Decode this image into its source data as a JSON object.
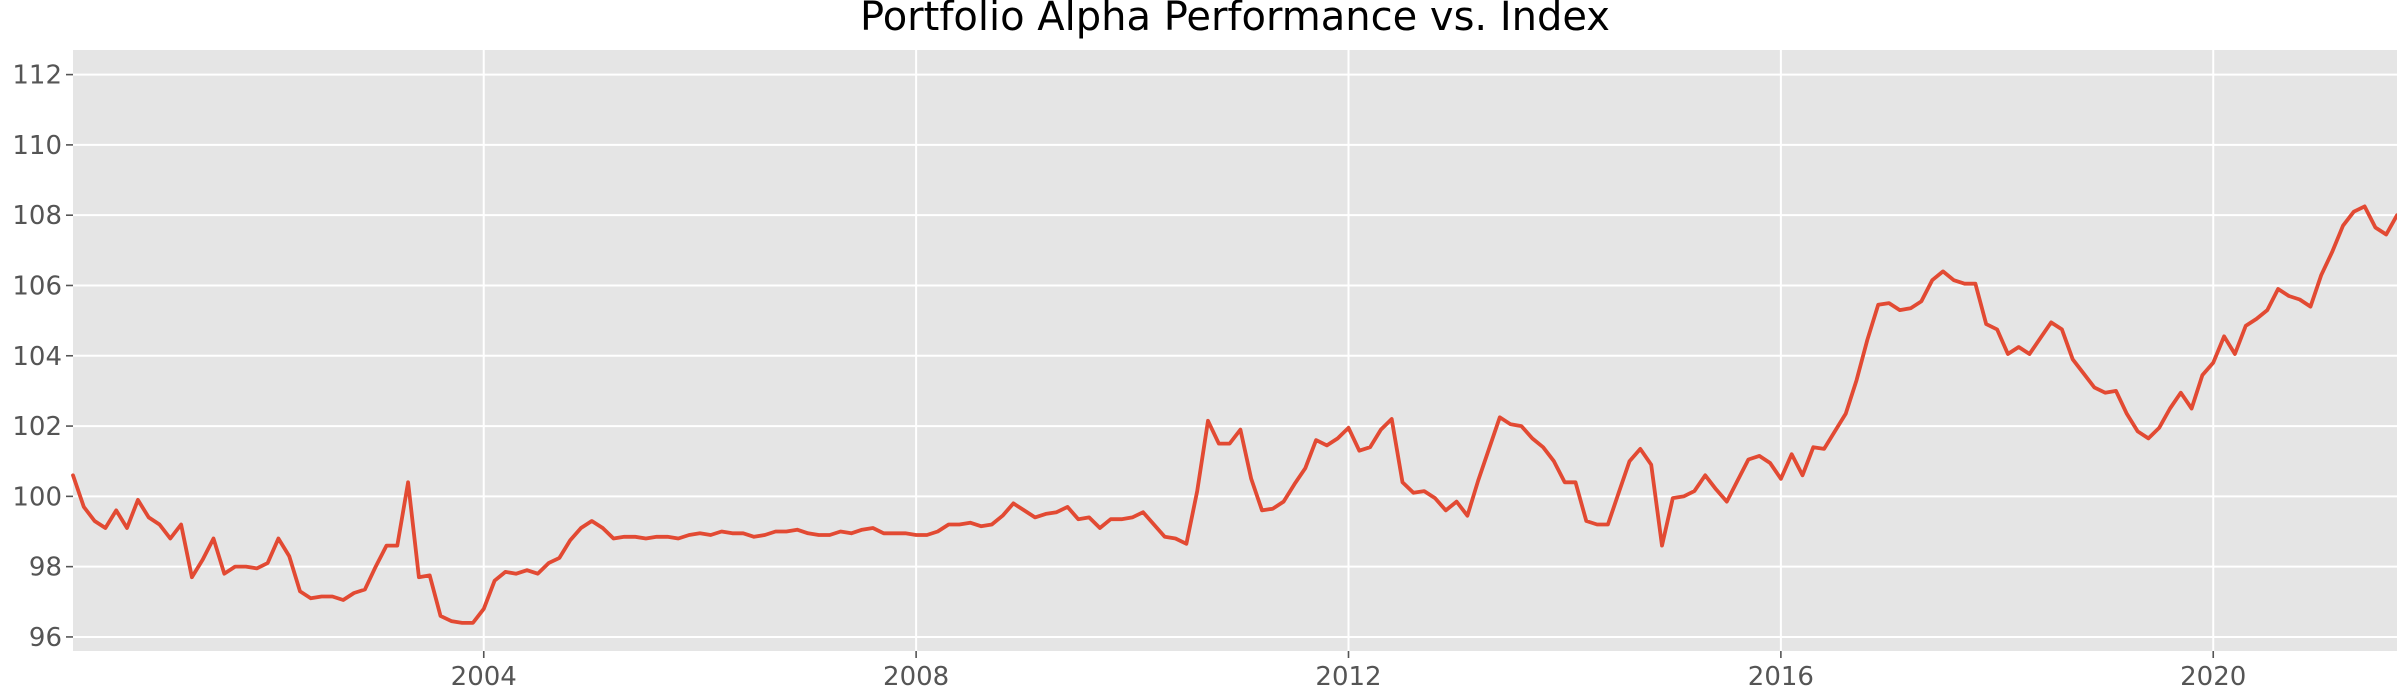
{
  "chart_data": {
    "type": "line",
    "title": "Portfolio Alpha Performance vs. Index",
    "xlabel": "",
    "ylabel": "",
    "xlim": [
      2000.2,
      2021.7
    ],
    "ylim": [
      95.6,
      112.7
    ],
    "xticks": [
      2004,
      2008,
      2012,
      2016,
      2020
    ],
    "yticks": [
      96,
      98,
      100,
      102,
      104,
      106,
      108,
      110,
      112
    ],
    "grid": true,
    "legend": "none",
    "colors": {
      "plot_background": "#e5e5e5",
      "grid": "#ffffff",
      "line": "#e24a33",
      "tick_label": "#555555"
    },
    "series": [
      {
        "color": "#e24a33",
        "points": [
          [
            2000.2,
            100.6
          ],
          [
            2000.3,
            99.7
          ],
          [
            2000.4,
            99.3
          ],
          [
            2000.5,
            99.1
          ],
          [
            2000.6,
            99.6
          ],
          [
            2000.7,
            99.1
          ],
          [
            2000.8,
            99.9
          ],
          [
            2000.9,
            99.4
          ],
          [
            2001.0,
            99.2
          ],
          [
            2001.1,
            98.8
          ],
          [
            2001.2,
            99.2
          ],
          [
            2001.3,
            97.7
          ],
          [
            2001.4,
            98.2
          ],
          [
            2001.5,
            98.8
          ],
          [
            2001.6,
            97.8
          ],
          [
            2001.7,
            98.0
          ],
          [
            2001.8,
            98.0
          ],
          [
            2001.9,
            97.95
          ],
          [
            2002.0,
            98.1
          ],
          [
            2002.1,
            98.8
          ],
          [
            2002.2,
            98.3
          ],
          [
            2002.3,
            97.3
          ],
          [
            2002.4,
            97.1
          ],
          [
            2002.5,
            97.15
          ],
          [
            2002.6,
            97.15
          ],
          [
            2002.7,
            97.05
          ],
          [
            2002.8,
            97.25
          ],
          [
            2002.9,
            97.35
          ],
          [
            2003.0,
            98.0
          ],
          [
            2003.1,
            98.6
          ],
          [
            2003.2,
            98.6
          ],
          [
            2003.3,
            100.4
          ],
          [
            2003.4,
            97.7
          ],
          [
            2003.5,
            97.75
          ],
          [
            2003.6,
            96.6
          ],
          [
            2003.7,
            96.45
          ],
          [
            2003.8,
            96.4
          ],
          [
            2003.9,
            96.4
          ],
          [
            2004.0,
            96.8
          ],
          [
            2004.1,
            97.6
          ],
          [
            2004.2,
            97.85
          ],
          [
            2004.3,
            97.8
          ],
          [
            2004.4,
            97.9
          ],
          [
            2004.5,
            97.8
          ],
          [
            2004.6,
            98.1
          ],
          [
            2004.7,
            98.25
          ],
          [
            2004.8,
            98.75
          ],
          [
            2004.9,
            99.1
          ],
          [
            2005.0,
            99.3
          ],
          [
            2005.1,
            99.1
          ],
          [
            2005.2,
            98.8
          ],
          [
            2005.3,
            98.85
          ],
          [
            2005.4,
            98.85
          ],
          [
            2005.5,
            98.8
          ],
          [
            2005.6,
            98.85
          ],
          [
            2005.7,
            98.85
          ],
          [
            2005.8,
            98.8
          ],
          [
            2005.9,
            98.9
          ],
          [
            2006.0,
            98.95
          ],
          [
            2006.1,
            98.9
          ],
          [
            2006.2,
            99.0
          ],
          [
            2006.3,
            98.95
          ],
          [
            2006.4,
            98.95
          ],
          [
            2006.5,
            98.85
          ],
          [
            2006.6,
            98.9
          ],
          [
            2006.7,
            99.0
          ],
          [
            2006.8,
            99.0
          ],
          [
            2006.9,
            99.05
          ],
          [
            2007.0,
            98.95
          ],
          [
            2007.1,
            98.9
          ],
          [
            2007.2,
            98.9
          ],
          [
            2007.3,
            99.0
          ],
          [
            2007.4,
            98.95
          ],
          [
            2007.5,
            99.05
          ],
          [
            2007.6,
            99.1
          ],
          [
            2007.7,
            98.95
          ],
          [
            2007.8,
            98.95
          ],
          [
            2007.9,
            98.95
          ],
          [
            2008.0,
            98.9
          ],
          [
            2008.1,
            98.9
          ],
          [
            2008.2,
            99.0
          ],
          [
            2008.3,
            99.2
          ],
          [
            2008.4,
            99.2
          ],
          [
            2008.5,
            99.25
          ],
          [
            2008.6,
            99.15
          ],
          [
            2008.7,
            99.2
          ],
          [
            2008.8,
            99.45
          ],
          [
            2008.9,
            99.8
          ],
          [
            2009.0,
            99.6
          ],
          [
            2009.1,
            99.4
          ],
          [
            2009.2,
            99.5
          ],
          [
            2009.3,
            99.55
          ],
          [
            2009.4,
            99.7
          ],
          [
            2009.5,
            99.35
          ],
          [
            2009.6,
            99.4
          ],
          [
            2009.7,
            99.1
          ],
          [
            2009.8,
            99.35
          ],
          [
            2009.9,
            99.35
          ],
          [
            2010.0,
            99.4
          ],
          [
            2010.1,
            99.55
          ],
          [
            2010.2,
            99.2
          ],
          [
            2010.3,
            98.85
          ],
          [
            2010.4,
            98.8
          ],
          [
            2010.5,
            98.65
          ],
          [
            2010.6,
            100.15
          ],
          [
            2010.7,
            102.15
          ],
          [
            2010.8,
            101.5
          ],
          [
            2010.9,
            101.5
          ],
          [
            2011.0,
            101.9
          ],
          [
            2011.1,
            100.5
          ],
          [
            2011.2,
            99.6
          ],
          [
            2011.3,
            99.65
          ],
          [
            2011.4,
            99.85
          ],
          [
            2011.5,
            100.35
          ],
          [
            2011.6,
            100.8
          ],
          [
            2011.7,
            101.6
          ],
          [
            2011.8,
            101.45
          ],
          [
            2011.9,
            101.65
          ],
          [
            2012.0,
            101.95
          ],
          [
            2012.1,
            101.3
          ],
          [
            2012.2,
            101.4
          ],
          [
            2012.3,
            101.9
          ],
          [
            2012.4,
            102.2
          ],
          [
            2012.5,
            100.4
          ],
          [
            2012.6,
            100.1
          ],
          [
            2012.7,
            100.15
          ],
          [
            2012.8,
            99.95
          ],
          [
            2012.9,
            99.6
          ],
          [
            2013.0,
            99.85
          ],
          [
            2013.1,
            99.45
          ],
          [
            2013.2,
            100.45
          ],
          [
            2013.3,
            101.35
          ],
          [
            2013.4,
            102.25
          ],
          [
            2013.5,
            102.05
          ],
          [
            2013.6,
            102.0
          ],
          [
            2013.7,
            101.65
          ],
          [
            2013.8,
            101.4
          ],
          [
            2013.9,
            101.0
          ],
          [
            2014.0,
            100.4
          ],
          [
            2014.1,
            100.4
          ],
          [
            2014.2,
            99.3
          ],
          [
            2014.3,
            99.2
          ],
          [
            2014.4,
            99.2
          ],
          [
            2014.5,
            100.1
          ],
          [
            2014.6,
            101.0
          ],
          [
            2014.7,
            101.35
          ],
          [
            2014.8,
            100.9
          ],
          [
            2014.9,
            98.6
          ],
          [
            2015.0,
            99.95
          ],
          [
            2015.1,
            100.0
          ],
          [
            2015.2,
            100.15
          ],
          [
            2015.3,
            100.6
          ],
          [
            2015.4,
            100.2
          ],
          [
            2015.5,
            99.85
          ],
          [
            2015.6,
            100.45
          ],
          [
            2015.7,
            101.05
          ],
          [
            2015.8,
            101.15
          ],
          [
            2015.9,
            100.95
          ],
          [
            2016.0,
            100.5
          ],
          [
            2016.1,
            101.2
          ],
          [
            2016.2,
            100.6
          ],
          [
            2016.3,
            101.4
          ],
          [
            2016.4,
            101.35
          ],
          [
            2016.5,
            101.85
          ],
          [
            2016.6,
            102.35
          ],
          [
            2016.7,
            103.3
          ],
          [
            2016.8,
            104.45
          ],
          [
            2016.9,
            105.45
          ],
          [
            2017.0,
            105.5
          ],
          [
            2017.1,
            105.3
          ],
          [
            2017.2,
            105.35
          ],
          [
            2017.3,
            105.55
          ],
          [
            2017.4,
            106.15
          ],
          [
            2017.5,
            106.4
          ],
          [
            2017.6,
            106.15
          ],
          [
            2017.7,
            106.05
          ],
          [
            2017.8,
            106.05
          ],
          [
            2017.9,
            104.9
          ],
          [
            2018.0,
            104.75
          ],
          [
            2018.1,
            104.05
          ],
          [
            2018.2,
            104.25
          ],
          [
            2018.3,
            104.05
          ],
          [
            2018.4,
            104.5
          ],
          [
            2018.5,
            104.95
          ],
          [
            2018.6,
            104.75
          ],
          [
            2018.7,
            103.9
          ],
          [
            2018.8,
            103.5
          ],
          [
            2018.9,
            103.1
          ],
          [
            2019.0,
            102.95
          ],
          [
            2019.1,
            103.0
          ],
          [
            2019.2,
            102.35
          ],
          [
            2019.3,
            101.85
          ],
          [
            2019.4,
            101.65
          ],
          [
            2019.5,
            101.95
          ],
          [
            2019.6,
            102.5
          ],
          [
            2019.7,
            102.95
          ],
          [
            2019.8,
            102.5
          ],
          [
            2019.9,
            103.45
          ],
          [
            2020.0,
            103.8
          ],
          [
            2020.1,
            104.55
          ],
          [
            2020.2,
            104.05
          ],
          [
            2020.3,
            104.85
          ],
          [
            2020.4,
            105.05
          ],
          [
            2020.5,
            105.3
          ],
          [
            2020.6,
            105.9
          ],
          [
            2020.7,
            105.7
          ],
          [
            2020.8,
            105.6
          ],
          [
            2020.9,
            105.4
          ],
          [
            2021.0,
            106.3
          ],
          [
            2021.1,
            106.95
          ],
          [
            2021.2,
            107.7
          ],
          [
            2021.3,
            108.1
          ],
          [
            2021.4,
            108.25
          ],
          [
            2021.5,
            107.65
          ],
          [
            2021.6,
            107.45
          ],
          [
            2021.7,
            108.0
          ]
        ]
      }
    ]
  }
}
